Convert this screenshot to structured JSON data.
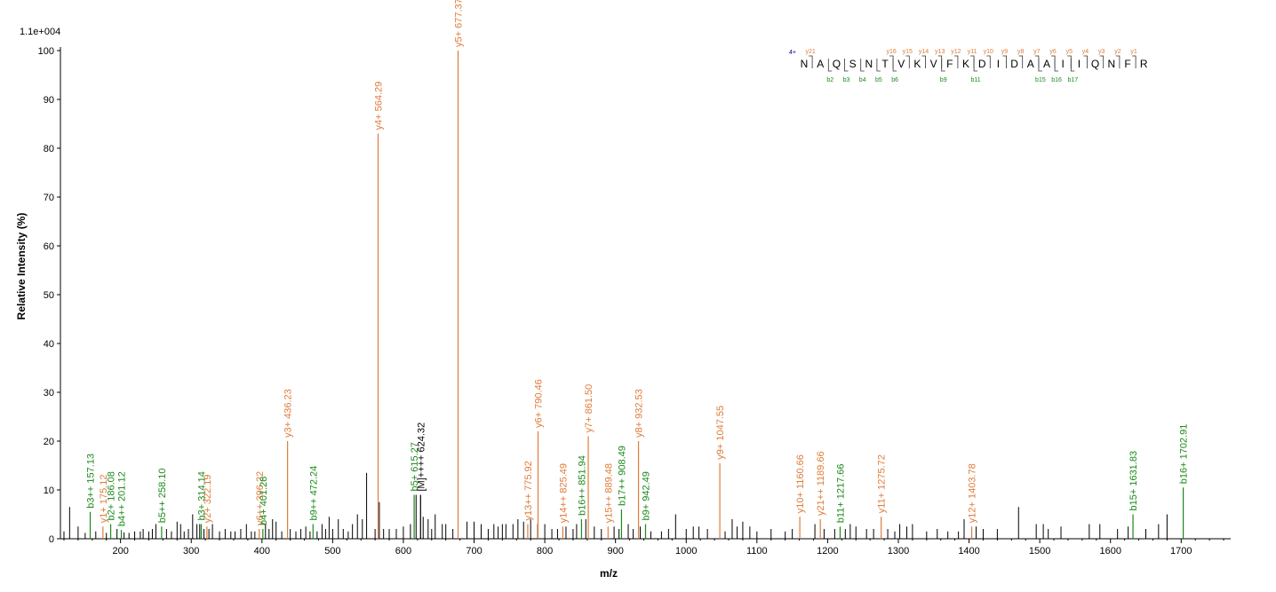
{
  "chart_data": {
    "type": "bar",
    "title": "",
    "xlabel": "m/z",
    "ylabel": "Relative   Intensity (%)",
    "scale_label": "1.1e+004",
    "xlim": [
      115,
      1770
    ],
    "ylim": [
      0,
      100
    ],
    "x_ticks": [
      100,
      200,
      300,
      400,
      500,
      600,
      700,
      800,
      900,
      1000,
      1100,
      1200,
      1300,
      1400,
      1500,
      1600,
      1700
    ],
    "y_ticks": [
      0,
      10,
      20,
      30,
      40,
      50,
      60,
      70,
      80,
      90,
      100
    ],
    "colors": {
      "y_ion": "#e07b39",
      "b_ion": "#1a8a1a",
      "unassigned": "#000000",
      "charge": "#00008b"
    },
    "annotated_peaks": [
      {
        "label": "b3++ 157.13",
        "mz": 157.13,
        "intensity": 5.5,
        "ion": "b"
      },
      {
        "label": "y1+ 175.12",
        "mz": 175.12,
        "intensity": 2.5,
        "ion": "y"
      },
      {
        "label": "b2+ 186.08",
        "mz": 186.08,
        "intensity": 3,
        "ion": "b"
      },
      {
        "label": "b4++ 201.12",
        "mz": 201.12,
        "intensity": 1.8,
        "ion": "b"
      },
      {
        "label": "b5++ 258.10",
        "mz": 258.1,
        "intensity": 2.5,
        "ion": "b"
      },
      {
        "label": "b3+ 314.14",
        "mz": 314.14,
        "intensity": 3,
        "ion": "b"
      },
      {
        "label": "y2+ 322.19",
        "mz": 322.19,
        "intensity": 2.5,
        "ion": "y"
      },
      {
        "label": "y6++ 396.22",
        "mz": 396.22,
        "intensity": 2,
        "ion": "y"
      },
      {
        "label": "b4+ 401.28",
        "mz": 401.28,
        "intensity": 2,
        "ion": "b"
      },
      {
        "label": "y3+ 436.23",
        "mz": 436.23,
        "intensity": 20,
        "ion": "y"
      },
      {
        "label": "b9++ 472.24",
        "mz": 472.24,
        "intensity": 3,
        "ion": "b"
      },
      {
        "label": "y4+ 564.29",
        "mz": 564.29,
        "intensity": 83,
        "ion": "y"
      },
      {
        "label": "b5+ 615.27",
        "mz": 615.27,
        "intensity": 9,
        "ion": "b"
      },
      {
        "label": "[M]++++ 624.32",
        "mz": 624.32,
        "intensity": 9,
        "ion": "unassigned"
      },
      {
        "label": "y5+ 677.37",
        "mz": 677.37,
        "intensity": 100,
        "ion": "y"
      },
      {
        "label": "y13++ 775.92",
        "mz": 775.92,
        "intensity": 3,
        "ion": "y"
      },
      {
        "label": "y6+ 790.46",
        "mz": 790.46,
        "intensity": 22,
        "ion": "y"
      },
      {
        "label": "y14++ 825.49",
        "mz": 825.49,
        "intensity": 2.5,
        "ion": "y"
      },
      {
        "label": "b16++ 851.94",
        "mz": 851.94,
        "intensity": 4,
        "ion": "b"
      },
      {
        "label": "y7+ 861.50",
        "mz": 861.5,
        "intensity": 21,
        "ion": "y"
      },
      {
        "label": "y15++ 889.48",
        "mz": 889.48,
        "intensity": 2.5,
        "ion": "y"
      },
      {
        "label": "b17++ 908.49",
        "mz": 908.49,
        "intensity": 6,
        "ion": "b"
      },
      {
        "label": "y8+ 932.53",
        "mz": 932.53,
        "intensity": 20,
        "ion": "y"
      },
      {
        "label": "b9+ 942.49",
        "mz": 942.49,
        "intensity": 3,
        "ion": "b"
      },
      {
        "label": "y9+ 1047.55",
        "mz": 1047.55,
        "intensity": 15.5,
        "ion": "y"
      },
      {
        "label": "y10+ 1160.66",
        "mz": 1160.66,
        "intensity": 4.5,
        "ion": "y"
      },
      {
        "label": "y21++ 1189.66",
        "mz": 1189.66,
        "intensity": 4,
        "ion": "y"
      },
      {
        "label": "b11+ 1217.66",
        "mz": 1217.66,
        "intensity": 2.5,
        "ion": "b"
      },
      {
        "label": "y11+ 1275.72",
        "mz": 1275.72,
        "intensity": 4.5,
        "ion": "y"
      },
      {
        "label": "y12+ 1403.78",
        "mz": 1403.78,
        "intensity": 2.5,
        "ion": "y"
      },
      {
        "label": "b15+ 1631.83",
        "mz": 1631.83,
        "intensity": 5,
        "ion": "b"
      },
      {
        "label": "b16+ 1702.91",
        "mz": 1702.91,
        "intensity": 10.5,
        "ion": "b"
      }
    ],
    "noise_peaks": [
      [
        120,
        1.5
      ],
      [
        128,
        6.5
      ],
      [
        140,
        2.5
      ],
      [
        150,
        1.2
      ],
      [
        165,
        1.5
      ],
      [
        180,
        1.2
      ],
      [
        195,
        2
      ],
      [
        205,
        1.3
      ],
      [
        212,
        1.2
      ],
      [
        220,
        1.5
      ],
      [
        228,
        1.5
      ],
      [
        232,
        2
      ],
      [
        240,
        1.5
      ],
      [
        245,
        2
      ],
      [
        250,
        3
      ],
      [
        265,
        2
      ],
      [
        272,
        1.5
      ],
      [
        280,
        3.5
      ],
      [
        285,
        3
      ],
      [
        290,
        1.5
      ],
      [
        296,
        2
      ],
      [
        302,
        5
      ],
      [
        308,
        3
      ],
      [
        312,
        3
      ],
      [
        318,
        2
      ],
      [
        325,
        2
      ],
      [
        330,
        3
      ],
      [
        340,
        1.5
      ],
      [
        348,
        2
      ],
      [
        356,
        1.5
      ],
      [
        362,
        1.5
      ],
      [
        370,
        2
      ],
      [
        378,
        3
      ],
      [
        385,
        1.5
      ],
      [
        390,
        1.5
      ],
      [
        405,
        3
      ],
      [
        410,
        2
      ],
      [
        415,
        4
      ],
      [
        420,
        3.5
      ],
      [
        428,
        1.5
      ],
      [
        440,
        2
      ],
      [
        448,
        1.5
      ],
      [
        455,
        2
      ],
      [
        462,
        2.5
      ],
      [
        468,
        1.5
      ],
      [
        478,
        1.5
      ],
      [
        485,
        3
      ],
      [
        490,
        2
      ],
      [
        495,
        4.5
      ],
      [
        500,
        2
      ],
      [
        508,
        4
      ],
      [
        515,
        2
      ],
      [
        522,
        1.5
      ],
      [
        528,
        3
      ],
      [
        535,
        5
      ],
      [
        542,
        4
      ],
      [
        548,
        13.5
      ],
      [
        560,
        2
      ],
      [
        566,
        7.5
      ],
      [
        572,
        2
      ],
      [
        580,
        2
      ],
      [
        590,
        2
      ],
      [
        600,
        2.5
      ],
      [
        610,
        3
      ],
      [
        618,
        9
      ],
      [
        628,
        4.5
      ],
      [
        635,
        4
      ],
      [
        640,
        2
      ],
      [
        645,
        5
      ],
      [
        655,
        3
      ],
      [
        660,
        3
      ],
      [
        670,
        2
      ],
      [
        690,
        3.5
      ],
      [
        700,
        3.5
      ],
      [
        710,
        3
      ],
      [
        720,
        2
      ],
      [
        728,
        3
      ],
      [
        734,
        2.5
      ],
      [
        740,
        3
      ],
      [
        745,
        3
      ],
      [
        755,
        3
      ],
      [
        762,
        4
      ],
      [
        770,
        3.5
      ],
      [
        780,
        4
      ],
      [
        790,
        3
      ],
      [
        800,
        3
      ],
      [
        810,
        2
      ],
      [
        818,
        2
      ],
      [
        830,
        2.5
      ],
      [
        840,
        2
      ],
      [
        845,
        3
      ],
      [
        858,
        4
      ],
      [
        870,
        2.5
      ],
      [
        880,
        2
      ],
      [
        898,
        2.5
      ],
      [
        905,
        2
      ],
      [
        918,
        3
      ],
      [
        925,
        2
      ],
      [
        935,
        2.5
      ],
      [
        950,
        1.5
      ],
      [
        965,
        1.5
      ],
      [
        975,
        2
      ],
      [
        985,
        5
      ],
      [
        1000,
        2
      ],
      [
        1010,
        2.5
      ],
      [
        1018,
        2.5
      ],
      [
        1030,
        2
      ],
      [
        1055,
        1.5
      ],
      [
        1065,
        4
      ],
      [
        1072,
        2.5
      ],
      [
        1080,
        3.5
      ],
      [
        1090,
        2.5
      ],
      [
        1100,
        1.5
      ],
      [
        1120,
        2
      ],
      [
        1140,
        1.5
      ],
      [
        1150,
        2
      ],
      [
        1182,
        3
      ],
      [
        1195,
        2
      ],
      [
        1210,
        2
      ],
      [
        1225,
        2
      ],
      [
        1232,
        3
      ],
      [
        1240,
        2.5
      ],
      [
        1255,
        2
      ],
      [
        1265,
        2
      ],
      [
        1285,
        2
      ],
      [
        1295,
        1.5
      ],
      [
        1302,
        3
      ],
      [
        1312,
        2.5
      ],
      [
        1320,
        3
      ],
      [
        1340,
        1.5
      ],
      [
        1355,
        2
      ],
      [
        1370,
        1.5
      ],
      [
        1385,
        1.5
      ],
      [
        1393,
        4
      ],
      [
        1410,
        2.5
      ],
      [
        1420,
        2
      ],
      [
        1440,
        2
      ],
      [
        1470,
        6.5
      ],
      [
        1495,
        3
      ],
      [
        1505,
        3
      ],
      [
        1512,
        2
      ],
      [
        1530,
        2.5
      ],
      [
        1570,
        3
      ],
      [
        1585,
        3
      ],
      [
        1610,
        2
      ],
      [
        1625,
        2.5
      ],
      [
        1650,
        2
      ],
      [
        1668,
        3
      ],
      [
        1680,
        5
      ]
    ],
    "sequence": {
      "charge": "4+",
      "residues": [
        "N",
        "A",
        "Q",
        "S",
        "N",
        "T",
        "V",
        "K",
        "V",
        "F",
        "K",
        "D",
        "I",
        "D",
        "A",
        "A",
        "I",
        "I",
        "Q",
        "N",
        "F",
        "R"
      ],
      "y_ions": [
        {
          "label": "y21",
          "after": 0
        },
        {
          "label": "y16",
          "after": 5
        },
        {
          "label": "y15",
          "after": 6
        },
        {
          "label": "y14",
          "after": 7
        },
        {
          "label": "y13",
          "after": 8
        },
        {
          "label": "y12",
          "after": 9
        },
        {
          "label": "y11",
          "after": 10
        },
        {
          "label": "y10",
          "after": 11
        },
        {
          "label": "y9",
          "after": 12
        },
        {
          "label": "y8",
          "after": 13
        },
        {
          "label": "y7",
          "after": 14
        },
        {
          "label": "y6",
          "after": 15
        },
        {
          "label": "y5",
          "after": 16
        },
        {
          "label": "y4",
          "after": 17
        },
        {
          "label": "y3",
          "after": 18
        },
        {
          "label": "y2",
          "after": 19
        },
        {
          "label": "y1",
          "after": 20
        }
      ],
      "b_ions": [
        {
          "label": "b2",
          "after": 1
        },
        {
          "label": "b3",
          "after": 2
        },
        {
          "label": "b4",
          "after": 3
        },
        {
          "label": "b5",
          "after": 4
        },
        {
          "label": "b6",
          "after": 5
        },
        {
          "label": "b9",
          "after": 8
        },
        {
          "label": "b11",
          "after": 10
        },
        {
          "label": "b15",
          "after": 14
        },
        {
          "label": "b16",
          "after": 15
        },
        {
          "label": "b17",
          "after": 16
        }
      ]
    }
  }
}
